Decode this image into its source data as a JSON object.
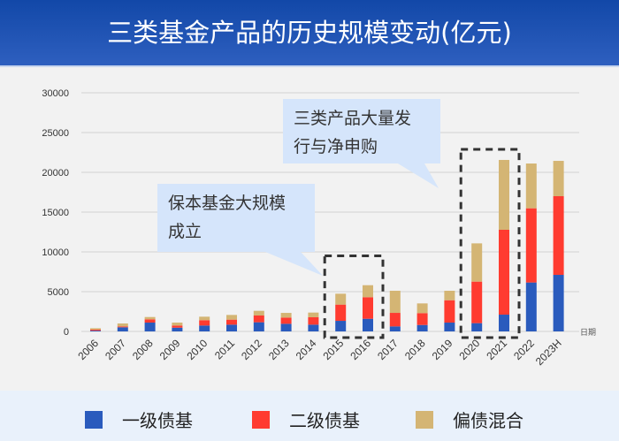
{
  "title": "三类基金产品的历史规模变动(亿元)",
  "chart_data": {
    "type": "bar",
    "stacked": true,
    "title": "三类基金产品的历史规模变动(亿元)",
    "xlabel": "日期",
    "ylabel": "",
    "ylim": [
      0,
      30000
    ],
    "yticks": [
      0,
      5000,
      10000,
      15000,
      20000,
      25000,
      30000
    ],
    "grid": true,
    "legend_position": "bottom",
    "categories": [
      "2006",
      "2007",
      "2008",
      "2009",
      "2010",
      "2011",
      "2012",
      "2013",
      "2014",
      "2015",
      "2016",
      "2017",
      "2018",
      "2019",
      "2020",
      "2021",
      "2022",
      "2023H"
    ],
    "series": [
      {
        "name": "一级债基",
        "color": "#2a5bbd",
        "values": [
          100,
          520,
          1110,
          470,
          740,
          850,
          1150,
          960,
          850,
          1330,
          1590,
          630,
          810,
          1110,
          1040,
          2110,
          6150,
          7110
        ]
      },
      {
        "name": "二级债基",
        "color": "#ff3b30",
        "values": [
          120,
          110,
          410,
          270,
          670,
          630,
          850,
          780,
          930,
          2040,
          2710,
          1700,
          1490,
          2810,
          5220,
          10670,
          9330,
          9890
        ]
      },
      {
        "name": "偏债混合",
        "color": "#d4b574",
        "values": [
          180,
          370,
          290,
          370,
          440,
          590,
          590,
          590,
          590,
          1370,
          1510,
          2780,
          1220,
          1190,
          4810,
          8780,
          5630,
          4440
        ]
      }
    ],
    "annotations": [
      {
        "text_lines": [
          "保本基金大规模",
          "成立"
        ],
        "highlight": [
          "2015",
          "2016"
        ]
      },
      {
        "text_lines": [
          "三类产品大量发",
          "行与净申购"
        ],
        "highlight": [
          "2020",
          "2021"
        ]
      }
    ]
  }
}
